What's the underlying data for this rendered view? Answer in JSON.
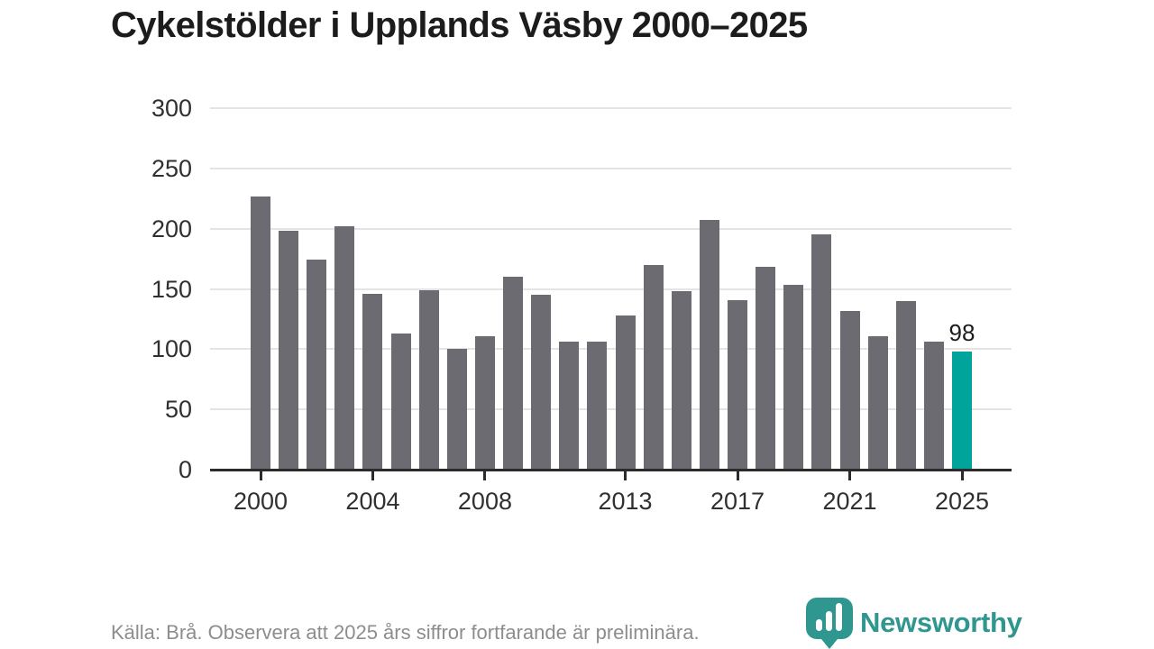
{
  "title": "Cykelstölder i Upplands Väsby 2000–2025",
  "footer": {
    "source_note": "Källa: Brå. Observera att 2025 års siffror fortfarande är preliminära."
  },
  "logo": {
    "text": "Newsworthy",
    "icon": "newsworthy-barchart-pin-icon"
  },
  "colors": {
    "bar": "#6c6b71",
    "highlight": "#00a49b",
    "grid": "#e4e4e4",
    "axis": "#2b2b2b",
    "title_text": "#1c1c1c",
    "tick_text": "#303030",
    "footer_text": "#8d8d8d",
    "logo_teal": "#2f9790"
  },
  "chart_data": {
    "type": "bar",
    "title": "Cykelstölder i Upplands Väsby 2000–2025",
    "categories": [
      2000,
      2001,
      2002,
      2003,
      2004,
      2005,
      2006,
      2007,
      2008,
      2009,
      2010,
      2011,
      2012,
      2013,
      2014,
      2015,
      2016,
      2017,
      2018,
      2019,
      2020,
      2021,
      2022,
      2023,
      2024,
      2025
    ],
    "values": [
      227,
      198,
      174,
      202,
      146,
      113,
      149,
      100,
      111,
      160,
      145,
      106,
      106,
      128,
      170,
      148,
      207,
      141,
      168,
      153,
      195,
      132,
      111,
      140,
      106,
      98
    ],
    "ylim": [
      0,
      300
    ],
    "yticks": [
      0,
      50,
      100,
      150,
      200,
      250,
      300
    ],
    "xticks": [
      2000,
      2004,
      2008,
      2013,
      2017,
      2021,
      2025
    ],
    "highlight_category": 2025,
    "highlight_value_label": "98",
    "xlabel": "",
    "ylabel": "",
    "grid": true,
    "legend": "none"
  }
}
